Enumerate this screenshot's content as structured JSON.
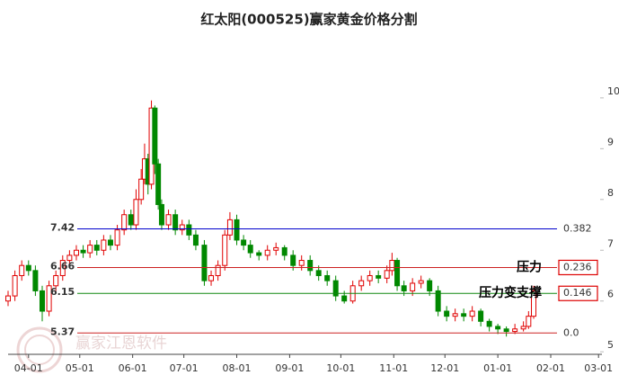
{
  "chart_data": {
    "type": "candlestick",
    "title": "红太阳(000525)赢家黄金价格分割",
    "watermark": "赢家江恩软件",
    "x": [
      -12,
      -8,
      -4,
      0,
      4,
      8,
      12,
      16,
      20,
      24,
      28,
      32,
      36,
      40,
      44,
      48,
      52,
      56,
      60,
      63,
      66,
      68,
      70,
      72,
      74,
      76,
      78,
      82,
      86,
      90,
      94,
      98,
      103,
      107,
      111,
      115,
      118,
      122,
      126,
      130,
      135,
      140,
      145,
      150,
      155,
      160,
      165,
      170,
      175,
      180,
      185,
      190,
      195,
      200,
      205,
      210,
      213,
      216,
      220,
      225,
      230,
      235,
      240,
      245,
      250,
      255,
      260,
      265,
      270,
      275,
      280,
      285,
      290,
      293,
      296
    ],
    "open": [
      6.0,
      6.1,
      6.5,
      6.7,
      6.6,
      6.2,
      5.8,
      6.3,
      6.5,
      6.8,
      6.9,
      7.0,
      6.95,
      7.1,
      7.0,
      7.2,
      7.1,
      7.4,
      7.7,
      7.5,
      8.0,
      8.4,
      8.8,
      8.3,
      9.8,
      8.7,
      7.9,
      7.5,
      7.7,
      7.4,
      7.5,
      7.3,
      7.1,
      6.4,
      6.5,
      6.7,
      7.3,
      7.6,
      7.2,
      7.1,
      6.95,
      6.9,
      7.0,
      7.05,
      6.9,
      6.7,
      6.8,
      6.6,
      6.5,
      6.4,
      6.1,
      6.0,
      6.3,
      6.4,
      6.5,
      6.45,
      6.6,
      6.8,
      6.3,
      6.2,
      6.35,
      6.4,
      6.2,
      5.8,
      5.7,
      5.75,
      5.7,
      5.8,
      5.6,
      5.5,
      5.45,
      5.4,
      5.45,
      5.5,
      5.7
    ],
    "high": [
      6.2,
      6.6,
      6.8,
      6.8,
      6.7,
      6.3,
      6.4,
      6.6,
      6.9,
      7.0,
      7.1,
      7.1,
      7.2,
      7.2,
      7.3,
      7.3,
      7.5,
      7.8,
      7.8,
      8.2,
      8.6,
      9.1,
      8.9,
      9.95,
      9.85,
      8.8,
      8.0,
      7.8,
      7.8,
      7.6,
      7.6,
      7.4,
      7.2,
      6.6,
      6.8,
      7.4,
      7.75,
      7.7,
      7.3,
      7.2,
      7.0,
      7.1,
      7.15,
      7.1,
      7.0,
      6.9,
      6.9,
      6.7,
      6.6,
      6.5,
      6.2,
      6.4,
      6.5,
      6.6,
      6.6,
      6.7,
      6.95,
      6.85,
      6.4,
      6.45,
      6.5,
      6.45,
      6.3,
      5.9,
      5.85,
      5.85,
      5.9,
      5.85,
      5.65,
      5.55,
      5.5,
      5.55,
      5.6,
      5.8,
      6.3
    ],
    "low": [
      5.9,
      6.0,
      6.4,
      6.5,
      6.1,
      5.6,
      5.7,
      6.2,
      6.4,
      6.7,
      6.8,
      6.85,
      6.85,
      6.9,
      6.9,
      7.0,
      7.0,
      7.3,
      7.4,
      7.4,
      7.9,
      8.3,
      8.1,
      8.2,
      8.5,
      7.8,
      7.4,
      7.4,
      7.3,
      7.3,
      7.2,
      7.0,
      6.3,
      6.3,
      6.4,
      6.6,
      7.2,
      7.1,
      7.0,
      6.85,
      6.8,
      6.8,
      6.9,
      6.8,
      6.6,
      6.6,
      6.5,
      6.4,
      6.3,
      6.0,
      5.95,
      5.95,
      6.2,
      6.3,
      6.35,
      6.35,
      6.5,
      6.2,
      6.1,
      6.1,
      6.25,
      6.1,
      5.7,
      5.6,
      5.6,
      5.6,
      5.6,
      5.5,
      5.4,
      5.35,
      5.3,
      5.35,
      5.4,
      5.45,
      5.65
    ],
    "close": [
      6.1,
      6.5,
      6.7,
      6.6,
      6.2,
      5.8,
      6.3,
      6.5,
      6.8,
      6.9,
      7.0,
      6.95,
      7.1,
      7.0,
      7.2,
      7.1,
      7.4,
      7.7,
      7.5,
      8.0,
      8.4,
      8.8,
      8.3,
      9.8,
      8.7,
      7.9,
      7.5,
      7.7,
      7.4,
      7.5,
      7.3,
      7.1,
      6.4,
      6.5,
      6.7,
      7.3,
      7.6,
      7.2,
      7.1,
      6.95,
      6.9,
      7.0,
      7.05,
      6.9,
      6.7,
      6.8,
      6.6,
      6.5,
      6.4,
      6.1,
      6.0,
      6.3,
      6.4,
      6.5,
      6.45,
      6.6,
      6.8,
      6.3,
      6.2,
      6.35,
      6.4,
      6.2,
      5.8,
      5.7,
      5.75,
      5.7,
      5.8,
      5.6,
      5.5,
      5.45,
      5.4,
      5.45,
      5.5,
      5.7,
      6.2
    ],
    "up_color": "#e00000",
    "down_color": "#008800",
    "xlim": [
      -12,
      336
    ],
    "xticks": [
      {
        "value": 0,
        "label": "04-01"
      },
      {
        "value": 30,
        "label": "05-01"
      },
      {
        "value": 61,
        "label": "06-01"
      },
      {
        "value": 91,
        "label": "07-01"
      },
      {
        "value": 122,
        "label": "08-01"
      },
      {
        "value": 153,
        "label": "09-01"
      },
      {
        "value": 183,
        "label": "10-01"
      },
      {
        "value": 214,
        "label": "11-01"
      },
      {
        "value": 244,
        "label": "12-01"
      },
      {
        "value": 275,
        "label": "01-01"
      },
      {
        "value": 306,
        "label": "02-01"
      },
      {
        "value": 334,
        "label": "03-01"
      }
    ],
    "ylim": [
      4.95,
      10.6
    ],
    "yticks": [
      5,
      6,
      7,
      8,
      9,
      10
    ],
    "levels": [
      {
        "value": 7.42,
        "ratio": "0.382",
        "color": "#0000cc"
      },
      {
        "value": 6.66,
        "ratio": "0.236",
        "color": "#cc2222",
        "note": "压力"
      },
      {
        "value": 6.15,
        "ratio": "0.146",
        "color": "#118811",
        "note": "压力变支撑"
      },
      {
        "value": 5.37,
        "ratio": "0.0",
        "color": "#cc2222"
      }
    ]
  }
}
